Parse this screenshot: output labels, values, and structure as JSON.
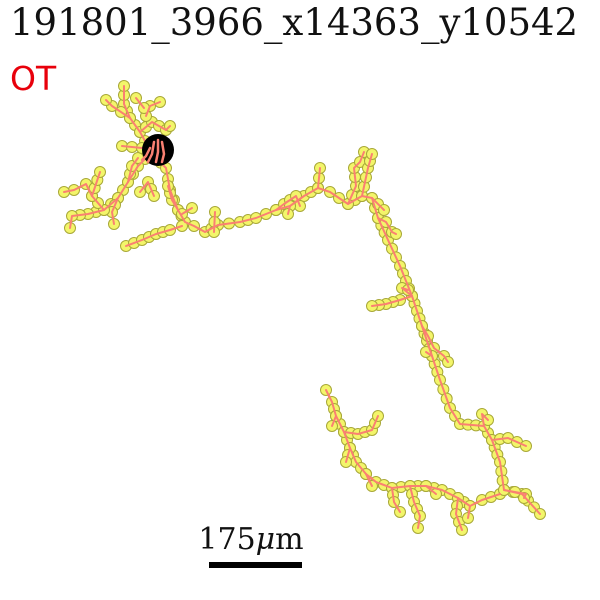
{
  "header": {
    "title": "191801_3966_x14363_y10542",
    "subtitle": "OT",
    "subtitle_color": "#e8000b"
  },
  "scale": {
    "value": "175",
    "unit_greek": "μ",
    "unit_suffix": "m"
  },
  "colors": {
    "branch": "#fa8072",
    "node_fill": "#f3f56a",
    "node_stroke": "#a8a838",
    "soma": "#000000"
  }
}
